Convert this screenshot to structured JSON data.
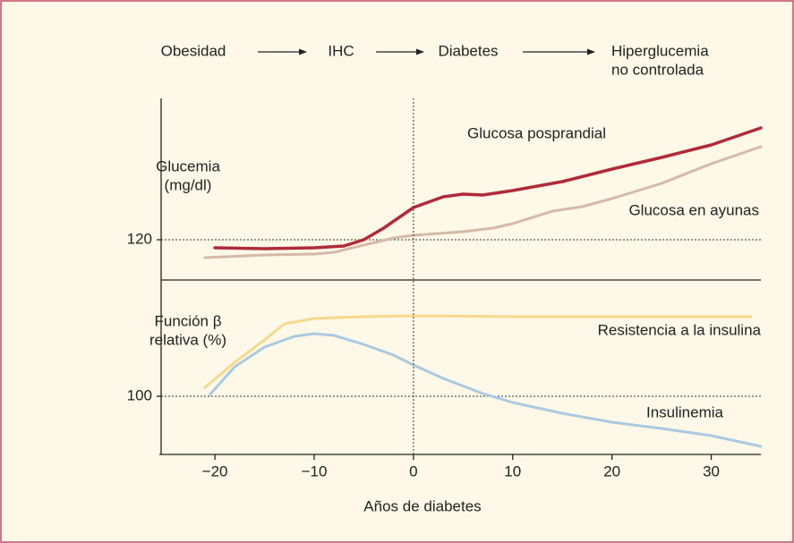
{
  "header": {
    "stages": [
      [
        "Obesidad"
      ],
      [
        "IHC"
      ],
      [
        "Diabetes"
      ],
      [
        "Hiperglucemia",
        "no controlada"
      ]
    ]
  },
  "chart_data": [
    {
      "type": "line",
      "ylabel": [
        "Glucemia",
        "(mg/dl)"
      ],
      "xlim": [
        -25.6,
        35
      ],
      "ylim": [
        111,
        151.6
      ],
      "yticks": [
        120
      ],
      "grid": "dotted",
      "series": [
        {
          "name": "Glucosa posprandial",
          "color": "#b02a3a",
          "x": [
            -20,
            -15,
            -10,
            -7,
            -5,
            -3,
            0,
            3,
            5,
            7,
            10,
            15,
            20,
            25,
            30,
            35
          ],
          "values": [
            118.2,
            118,
            118.2,
            118.6,
            120,
            122.6,
            127.2,
            129.6,
            130.2,
            130,
            131,
            133,
            135.8,
            138.4,
            141.2,
            145
          ]
        },
        {
          "name": "Glucosa en ayunas",
          "color": "#d6b9a8",
          "x": [
            -21,
            -15,
            -10,
            -8,
            -5,
            -2,
            0,
            5,
            8,
            10,
            14,
            17,
            20,
            25,
            30,
            35
          ],
          "values": [
            116,
            116.6,
            116.8,
            117.2,
            118.8,
            120.4,
            121,
            121.8,
            122.6,
            123.6,
            126.4,
            127.4,
            129.2,
            132.6,
            137,
            140.8
          ]
        }
      ]
    },
    {
      "type": "line",
      "ylabel": [
        "Función β",
        "relativa (%)"
      ],
      "xlabel": "Años de diabetes",
      "xlim": [
        -25.6,
        35
      ],
      "ylim": [
        87,
        126
      ],
      "xticks": [
        {
          "value": -20,
          "label": "−20"
        },
        {
          "value": -10,
          "label": "−10"
        },
        0,
        10,
        20,
        30
      ],
      "yticks": [
        100
      ],
      "grid": "dotted",
      "series": [
        {
          "name": "Resistencia a la insulina",
          "color": "#f6d98c",
          "x": [
            -21,
            -18,
            -15,
            -13,
            -10,
            -5,
            0,
            10,
            20,
            30,
            34
          ],
          "values": [
            102,
            107.6,
            112.6,
            116.2,
            117.4,
            117.8,
            118,
            117.8,
            117.8,
            117.8,
            117.8
          ]
        },
        {
          "name": "Insulinemia",
          "color": "#abc9e2",
          "x": [
            -20.5,
            -18,
            -15,
            -12,
            -10,
            -8,
            -5,
            -2,
            0,
            3,
            7,
            10,
            15,
            20,
            25,
            30,
            35
          ],
          "values": [
            100.4,
            106.6,
            111,
            113.4,
            114,
            113.6,
            111.6,
            109.2,
            107,
            104,
            100.6,
            98.6,
            96.2,
            94.2,
            92.8,
            91.2,
            88.8
          ]
        }
      ]
    }
  ]
}
